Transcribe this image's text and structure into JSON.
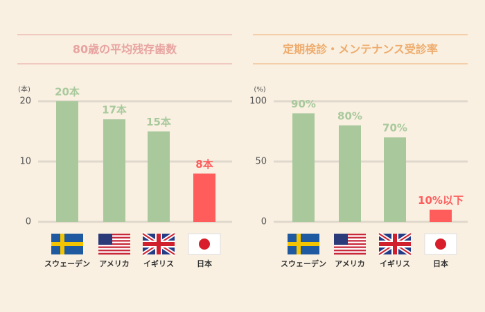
{
  "chart_data": [
    {
      "type": "bar",
      "title": "80歳の平均残存歯数",
      "y_label": "(本)",
      "categories": [
        "スウェーデン",
        "アメリカ",
        "イギリス",
        "日本"
      ],
      "values": [
        20,
        17,
        15,
        8
      ],
      "value_labels": [
        "20本",
        "17本",
        "15本",
        "8本"
      ],
      "colors": [
        "#a9c99d",
        "#a9c99d",
        "#a9c99d",
        "#ff5c5c"
      ],
      "title_color": "#e8a3a0",
      "ylim": [
        0,
        20
      ],
      "yticks": [
        0,
        10,
        20
      ],
      "grid": true
    },
    {
      "type": "bar",
      "title": "定期検診・メンテナンス受診率",
      "y_label": "(%)",
      "categories": [
        "スウェーデン",
        "アメリカ",
        "イギリス",
        "日本"
      ],
      "values": [
        90,
        80,
        70,
        10
      ],
      "value_labels": [
        "90%",
        "80%",
        "70%",
        "10%以下"
      ],
      "colors": [
        "#a9c99d",
        "#a9c99d",
        "#a9c99d",
        "#ff5c5c"
      ],
      "title_color": "#eeac6e",
      "ylim": [
        0,
        100
      ],
      "yticks": [
        0,
        50,
        100
      ],
      "grid": true
    }
  ]
}
